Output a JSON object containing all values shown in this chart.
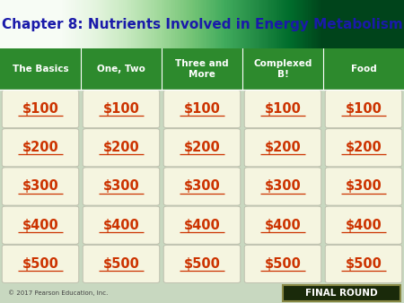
{
  "title": "Chapter 8: Nutrients Involved in Energy Metabolism",
  "title_color": "#1a1aaa",
  "header_bg": "#2d8a2d",
  "board_bg": "#1a2a8a",
  "categories": [
    "The Basics",
    "One, Two",
    "Three and\nMore",
    "Complexed\nB!",
    "Food"
  ],
  "amounts": [
    "$100",
    "$200",
    "$300",
    "$400",
    "$500"
  ],
  "cell_bg": "#f5f5e0",
  "amount_color": "#cc3300",
  "header_text_color": "#ffffff",
  "copyright_text": "© 2017 Pearson Education, Inc.",
  "final_round_text": "FINAL ROUND",
  "final_round_bg": "#1a2a0a",
  "final_round_border": "#888844",
  "final_round_text_color": "#ffffff",
  "fig_bg": "#c8d8c0",
  "title_grad_light": "#b8ddb8",
  "title_grad_dark": "#4aaa4a"
}
